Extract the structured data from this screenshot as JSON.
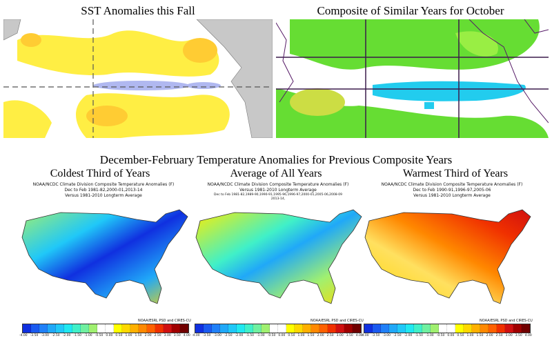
{
  "top_left": {
    "title": "SST Anomalies this Fall"
  },
  "top_right": {
    "title": "Composite of Similar Years for October"
  },
  "bottom": {
    "heading": "December-February Temperature Anomalies for Previous Composite Years",
    "panels": [
      {
        "subtitle": "Coldest Third of Years",
        "line1": "NOAA/NCDC Climate Division Composite Temperature Anomalies (F)",
        "line2": "Dec to Feb  1981-82,2000-01,2013-14",
        "line3": "Versus 1981-2010 Longterm Average",
        "line4": ""
      },
      {
        "subtitle": "Average of All Years",
        "line1": "NOAA/NCDC Climate Division Composite Temperature Anomalies (F)",
        "line2": "Versus 1981-2010 Longterm Average",
        "line3": "Dec to Feb   1981-82,1989-90,1990-91,1995-96,1996-97,2000-01,2005-06,2008-09",
        "line4": "2013-14,"
      },
      {
        "subtitle": "Warmest Third of Years",
        "line1": "NOAA/NCDC Climate Division Composite Temperature Anomalies (F)",
        "line2": "Dec to Feb  1990-91,1996-97,2005-06",
        "line3": "Versus 1981-2010 Longterm Average",
        "line4": ""
      }
    ],
    "colorbar": {
      "credit": "NOAA/ESRL PSD and CIRES-CU",
      "labels": [
        "-4.00",
        "-3.50",
        "-3.00",
        "-2.50",
        "-2.00",
        "-1.50",
        "-1.00",
        "-0.50",
        "0.00",
        "0.50",
        "1.00",
        "1.50",
        "2.00",
        "2.50",
        "3.00",
        "3.50",
        "4.00"
      ],
      "colors": [
        "#1030e0",
        "#1a5af0",
        "#2080f8",
        "#20a8f8",
        "#20c8f8",
        "#20e8f0",
        "#40f0c8",
        "#70f0a0",
        "#a0f070",
        "#ffffff",
        "#ffffff",
        "#ffff00",
        "#ffd800",
        "#ffb000",
        "#ff8800",
        "#ff6000",
        "#f03000",
        "#d01010",
        "#a00000",
        "#700000"
      ]
    }
  }
}
